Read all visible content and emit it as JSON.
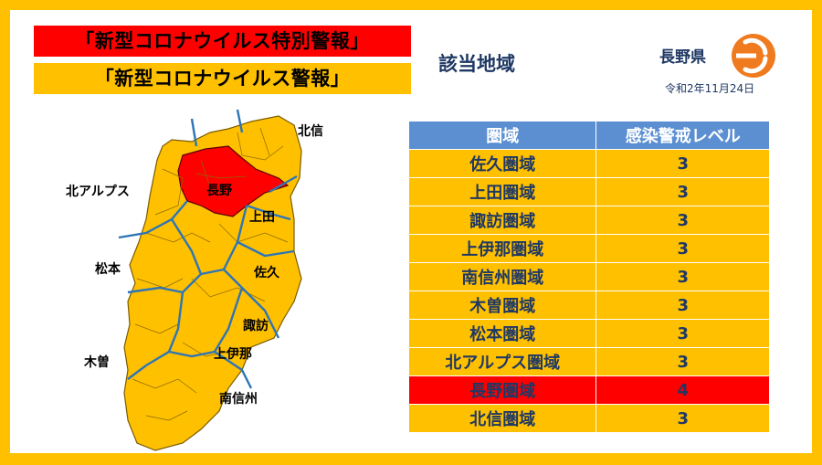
{
  "titles": {
    "special_alert": "「新型コロナウイルス特別警報」",
    "alert": "「新型コロナウイルス警報」"
  },
  "region_heading": "該当地域",
  "prefecture": "長野県",
  "date": "令和2年11月24日",
  "colors": {
    "border": "#ffc000",
    "special_alert": "#ff0000",
    "alert": "#ffc000",
    "table_header": "#5b8fd1",
    "text_navy": "#1f3864",
    "logo_orange": "#f07a1e"
  },
  "map_labels": {
    "hokushin": "北信",
    "nagano": "長野",
    "kita_alps": "北アルプス",
    "ueda": "上田",
    "matsumoto": "松本",
    "saku": "佐久",
    "suwa": "諏訪",
    "kiso": "木曽",
    "kamiina": "上伊那",
    "minamishinshu": "南信州"
  },
  "table": {
    "headers": [
      "圏域",
      "感染警戒レベル"
    ],
    "rows": [
      {
        "area": "佐久圏域",
        "level": "3"
      },
      {
        "area": "上田圏域",
        "level": "3"
      },
      {
        "area": "諏訪圏域",
        "level": "3"
      },
      {
        "area": "上伊那圏域",
        "level": "3"
      },
      {
        "area": "南信州圏域",
        "level": "3"
      },
      {
        "area": "木曽圏域",
        "level": "3"
      },
      {
        "area": "松本圏域",
        "level": "3"
      },
      {
        "area": "北アルプス圏域",
        "level": "3"
      },
      {
        "area": "長野圏域",
        "level": "4"
      },
      {
        "area": "北信圏域",
        "level": "3"
      }
    ]
  }
}
